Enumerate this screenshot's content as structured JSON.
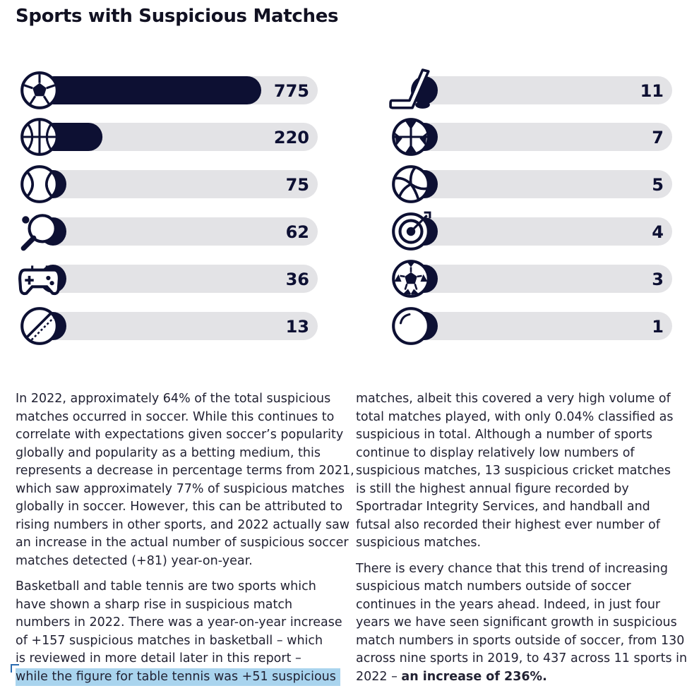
{
  "title": "Sports with Suspicious Matches",
  "colors": {
    "bar_fill": "#0d1033",
    "bar_track": "#e3e3e6",
    "icon_stroke": "#0d1033",
    "highlight": "#a9d4ee"
  },
  "chart_data": {
    "type": "bar",
    "orientation": "horizontal",
    "title": "Sports with Suspicious Matches",
    "icons": [
      "soccer-ball-icon",
      "basketball-icon",
      "tennis-ball-icon",
      "table-tennis-icon",
      "game-controller-icon",
      "cricket-ball-icon",
      "ice-hockey-icon",
      "handball-icon",
      "volleyball-icon",
      "darts-target-icon",
      "futsal-ball-icon",
      "ball-icon"
    ],
    "values": [
      775,
      220,
      75,
      62,
      36,
      13,
      11,
      7,
      5,
      4,
      3,
      1
    ],
    "value_labels": [
      "775",
      "220",
      "75",
      "62",
      "36",
      "13",
      "11",
      "7",
      "5",
      "4",
      "3",
      "1"
    ],
    "xlim": [
      0,
      775
    ]
  },
  "text": {
    "left_paragraphs": [
      [
        "In 2022, approximately 64% of the total suspicious",
        "matches occurred in soccer. While this continues to",
        "correlate with expectations given soccer’s popularity",
        "globally and popularity as a betting medium, this",
        "represents a decrease in percentage terms from 2021,",
        "which saw approximately 77% of suspicious matches",
        "globally in soccer. However, this can be attributed to",
        "rising numbers in other sports, and 2022 actually saw",
        "an increase in the actual number of suspicious soccer",
        "matches detected (+81) year-on-year."
      ],
      [
        "Basketball and table tennis are two sports which",
        "have shown a sharp rise in suspicious match",
        "numbers in 2022. There was a year-on-year increase",
        "of +157 suspicious matches in basketball – which",
        "is reviewed in more detail later in this report –"
      ]
    ],
    "left_highlighted_line": "while the figure for table tennis was +51 suspicious",
    "right_paragraphs": [
      [
        "matches, albeit this covered a very high volume of",
        "total matches played, with only 0.04% classified as",
        "suspicious in total.  Although a number of sports",
        "continue to display relatively low numbers of",
        "suspicious matches, 13 suspicious cricket matches",
        "is still the highest annual figure recorded by",
        "Sportradar Integrity Services, and handball and",
        "futsal also recorded their highest ever number of",
        "suspicious matches."
      ],
      [
        "There is every chance that this trend of increasing",
        "suspicious match numbers outside of soccer",
        "continues in the years ahead. Indeed, in just four",
        "years we have seen significant growth in suspicious",
        "match numbers in sports outside of soccer, from 130",
        "across nine sports in 2019, to 437 across 11 sports in"
      ]
    ],
    "right_last_line_prefix": "2022 – ",
    "right_last_line_bold": "an increase of 236%."
  }
}
